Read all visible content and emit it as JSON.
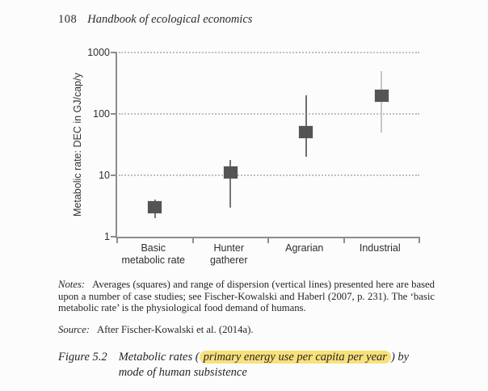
{
  "header": {
    "page_number": "108",
    "book_title": "Handbook of ecological economics"
  },
  "chart_data": {
    "type": "scatter",
    "title": "",
    "xlabel": "",
    "ylabel": "Metabolic rate: DEC in GJ/cap/y",
    "yscale": "log",
    "ylim": [
      1,
      1000
    ],
    "yticks": [
      1,
      10,
      100,
      1000
    ],
    "grid": {
      "horizontal": true,
      "style": "dotted",
      "color": "#bfbfbf"
    },
    "axis_color": "#8d8d8d",
    "categories": [
      [
        "Basic",
        "metabolic rate"
      ],
      [
        "Hunter",
        "gatherer"
      ],
      [
        "Agrarian"
      ],
      [
        "Industrial"
      ]
    ],
    "series": [
      {
        "name": "Averages (squares)",
        "marker": "square",
        "color": "#545454",
        "values": [
          3,
          11,
          50,
          200
        ]
      }
    ],
    "dispersion_ranges": [
      [
        2,
        4
      ],
      [
        3,
        18
      ],
      [
        20,
        200
      ],
      [
        50,
        500
      ]
    ],
    "range_line_colors": [
      "#757575",
      "#757575",
      "#6e6e6e",
      "#c7c7c7"
    ]
  },
  "notes": {
    "label": "Notes:",
    "text": "Averages (squares) and range of dispersion (vertical lines) presented here are based upon a number of case studies; see Fischer-Kowalski and Haberl (2007, p. 231). The ‘basic metabolic rate’ is the physiological food demand of humans."
  },
  "source": {
    "label": "Source:",
    "text": "After Fischer-Kowalski et al. (2014a)."
  },
  "caption": {
    "figure_label": "Figure 5.2",
    "text_before_highlight": "Metabolic rates (",
    "highlighted_text": "primary energy use per capita per year",
    "text_after_highlight": ") by",
    "line2": "mode of human subsistence",
    "highlight_color": "#f8e17b"
  }
}
